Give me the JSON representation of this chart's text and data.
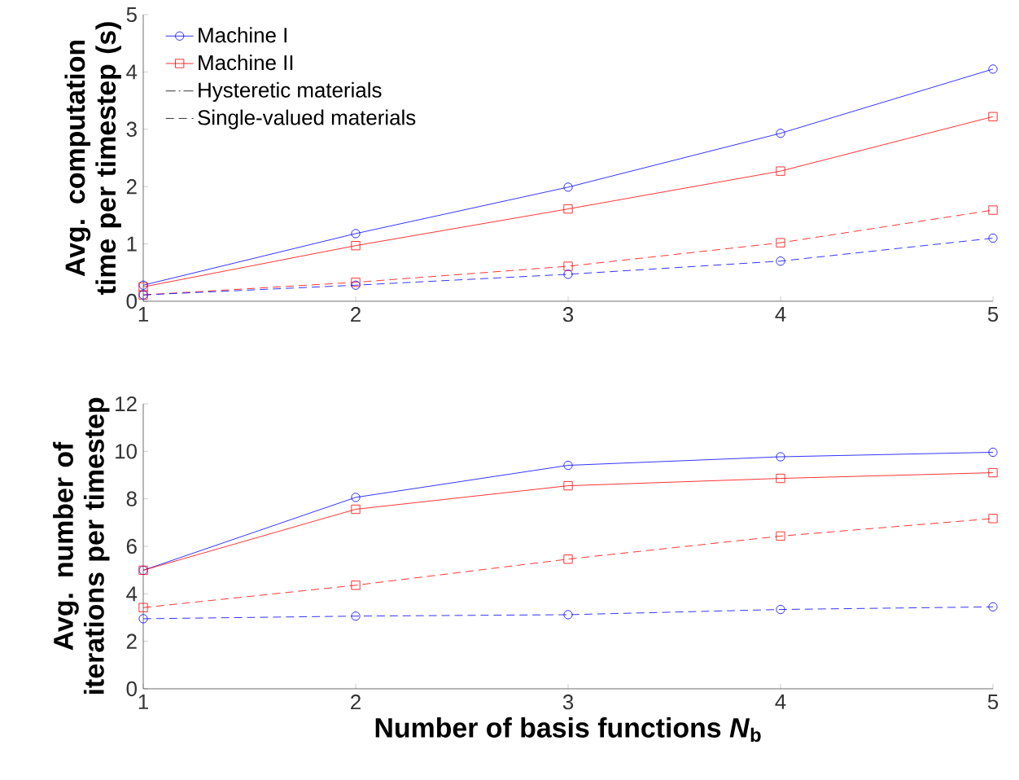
{
  "chart_data": [
    {
      "type": "line",
      "ylabel": "Avg. computation time per timestep (s)",
      "x": [
        1,
        2,
        3,
        4,
        5
      ],
      "xlim": [
        1,
        5
      ],
      "ylim": [
        0,
        5
      ],
      "xticks": [
        1,
        2,
        3,
        4,
        5
      ],
      "yticks": [
        0,
        1,
        2,
        3,
        4,
        5
      ],
      "grid": false,
      "legend": "top left",
      "series": [
        {
          "name": "Machine I",
          "color": "#0000ff",
          "marker": "circle",
          "line_style": "solid",
          "values": [
            0.28,
            1.18,
            1.99,
            2.93,
            4.05
          ]
        },
        {
          "name": "Machine II",
          "color": "#ff0000",
          "marker": "square",
          "line_style": "solid",
          "values": [
            0.25,
            0.97,
            1.61,
            2.27,
            3.22
          ]
        },
        {
          "name": "Hysteretic materials",
          "color": "#000000",
          "marker": "none",
          "line_style": "dashdot",
          "values": [
            null,
            null,
            null,
            null,
            null
          ]
        },
        {
          "name": "Single-valued materials",
          "color": "#000000",
          "marker": "none",
          "line_style": "dashed",
          "values": [
            null,
            null,
            null,
            null,
            null
          ]
        },
        {
          "color": "#ff0000",
          "marker": "square",
          "line_style": "dashed",
          "values": [
            0.11,
            0.33,
            0.61,
            1.02,
            1.59
          ]
        },
        {
          "color": "#0000ff",
          "marker": "circle",
          "line_style": "dashed",
          "values": [
            0.11,
            0.28,
            0.47,
            0.7,
            1.1
          ]
        }
      ]
    },
    {
      "type": "line",
      "ylabel": "Avg. number of iterations per timestep",
      "xlabel": "Number of basis functions *N*$_{b}$",
      "x": [
        1,
        2,
        3,
        4,
        5
      ],
      "xlim": [
        1,
        5
      ],
      "ylim": [
        0,
        12
      ],
      "xticks": [
        1,
        2,
        3,
        4,
        5
      ],
      "yticks": [
        0,
        2,
        4,
        6,
        8,
        10,
        12
      ],
      "grid": false,
      "legend": false,
      "series": [
        {
          "color": "#0000ff",
          "marker": "circle",
          "line_style": "solid",
          "values": [
            4.99,
            8.06,
            9.41,
            9.77,
            9.96
          ]
        },
        {
          "color": "#ff0000",
          "marker": "square",
          "line_style": "solid",
          "values": [
            4.99,
            7.56,
            8.55,
            8.86,
            9.1
          ]
        },
        {
          "color": "#ff0000",
          "marker": "square",
          "line_style": "dashed",
          "values": [
            3.42,
            4.36,
            5.46,
            6.43,
            7.17
          ]
        },
        {
          "color": "#0000ff",
          "marker": "circle",
          "line_style": "dashed",
          "values": [
            2.95,
            3.06,
            3.12,
            3.34,
            3.45
          ]
        }
      ]
    }
  ]
}
